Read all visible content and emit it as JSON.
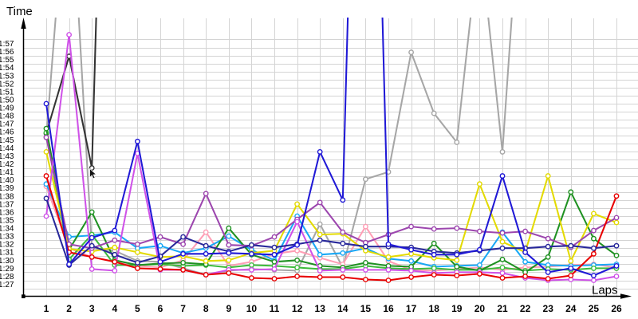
{
  "chart_data": {
    "type": "line",
    "title": "",
    "xlabel": "Laps",
    "ylabel": "Time",
    "x": [
      1,
      2,
      3,
      4,
      5,
      6,
      7,
      8,
      9,
      10,
      11,
      12,
      13,
      14,
      15,
      16,
      17,
      18,
      19,
      20,
      21,
      22,
      23,
      24,
      25,
      26
    ],
    "y_unit": "lap time in seconds (shown as m:ss)",
    "y_tick_labels": [
      "1:27",
      "1:28",
      "1:29",
      "1:30",
      "1:31",
      "1:32",
      "1:33",
      "1:34",
      "1:35",
      "1:36",
      "1:37",
      "1:38",
      "1:39",
      "1:40",
      "1:41",
      "1:42",
      "1:43",
      "1:44",
      "1:45",
      "1:46",
      "1:47",
      "1:48",
      "1:49",
      "1:50",
      "1:51",
      "1:52",
      "1:53",
      "1:54",
      "1:55",
      "1:56",
      "1:57"
    ],
    "ylim_seconds": [
      87,
      117
    ],
    "grid": true,
    "legend": "none",
    "series": [
      {
        "name": "gray",
        "color": "#a6a6a6",
        "values": [
          104.8,
          141.0,
          91.0,
          90.7,
          89.4,
          89.3,
          88.5,
          87.7,
          88.2,
          88.4,
          88.3,
          88.2,
          94.0,
          88.6,
          99.6,
          100.5,
          115.4,
          107.8,
          104.2,
          130.0,
          103.0,
          144.0,
          null,
          null,
          null,
          null
        ]
      },
      {
        "name": "black",
        "color": "#333333",
        "values": [
          105.3,
          114.9,
          101.0,
          200.0,
          null,
          null,
          null,
          null,
          null,
          null,
          null,
          null,
          null,
          null,
          null,
          null,
          null,
          null,
          null,
          null,
          null,
          null,
          null,
          null,
          null,
          null
        ]
      },
      {
        "name": "pink",
        "color": "#ff9eb5",
        "values": [
          98.7,
          91.0,
          89.9,
          89.3,
          88.8,
          88.6,
          89.5,
          93.0,
          88.8,
          89.3,
          90.3,
          90.7,
          89.8,
          89.0,
          93.7,
          89.4,
          88.3,
          88.2,
          88.4,
          88.6,
          88.3,
          88.6,
          88.7,
          88.9,
          89.0,
          88.6
        ]
      },
      {
        "name": "cyan",
        "color": "#19a8f5",
        "values": [
          99.0,
          92.4,
          92.6,
          93.0,
          91.0,
          91.3,
          90.4,
          91.0,
          92.5,
          90.8,
          89.5,
          95.0,
          90.2,
          90.4,
          91.0,
          89.7,
          89.4,
          88.7,
          88.8,
          88.9,
          93.0,
          89.3,
          88.9,
          88.8,
          88.9,
          89.0
        ]
      },
      {
        "name": "lime",
        "color": "#3dbb3d",
        "values": [
          105.4,
          89.6,
          92.7,
          88.9,
          88.9,
          89.0,
          88.8,
          88.9,
          88.6,
          88.9,
          88.8,
          88.6,
          88.4,
          88.4,
          88.8,
          88.5,
          88.4,
          88.5,
          88.3,
          88.3,
          88.6,
          88.2,
          88.4,
          88.3,
          88.5,
          88.5
        ]
      },
      {
        "name": "green",
        "color": "#1f9122",
        "values": [
          105.9,
          90.8,
          95.5,
          89.5,
          88.9,
          89.1,
          89.2,
          89.0,
          93.5,
          90.2,
          89.3,
          89.5,
          88.8,
          88.6,
          89.2,
          88.8,
          88.7,
          91.6,
          88.7,
          88.2,
          89.6,
          88.0,
          89.9,
          98.0,
          92.2,
          90.1
        ]
      },
      {
        "name": "yellow",
        "color": "#e3da00",
        "values": [
          103.0,
          90.9,
          90.6,
          91.1,
          90.5,
          89.9,
          90.0,
          89.4,
          89.5,
          90.4,
          90.7,
          96.5,
          92.7,
          92.8,
          90.7,
          89.9,
          90.3,
          89.8,
          89.5,
          99.0,
          91.8,
          90.5,
          100.0,
          89.4,
          95.3,
          94.2
        ]
      },
      {
        "name": "purple",
        "color": "#9c46ae",
        "values": [
          104.8,
          91.5,
          91.0,
          92.0,
          91.5,
          92.4,
          91.5,
          97.8,
          91.4,
          91.3,
          92.4,
          94.6,
          96.7,
          93.0,
          91.7,
          92.7,
          93.7,
          93.4,
          93.5,
          93.1,
          92.9,
          93.1,
          92.2,
          91.1,
          93.2,
          94.8
        ]
      },
      {
        "name": "magenta",
        "color": "#cf52e8",
        "values": [
          95.0,
          117.6,
          88.4,
          88.2,
          102.8,
          88.3,
          88.3,
          87.7,
          88.3,
          88.3,
          88.4,
          94.3,
          88.2,
          88.3,
          88.3,
          88.3,
          88.2,
          87.9,
          88.0,
          88.0,
          87.9,
          87.3,
          87.0,
          87.1,
          87.0,
          87.5
        ]
      },
      {
        "name": "red",
        "color": "#e80000",
        "values": [
          100.0,
          90.5,
          89.9,
          89.3,
          88.5,
          88.4,
          88.3,
          87.7,
          87.9,
          87.3,
          87.2,
          87.5,
          87.4,
          87.4,
          87.1,
          87.0,
          87.4,
          87.7,
          87.6,
          87.8,
          87.3,
          87.5,
          87.2,
          87.6,
          90.3,
          97.5
        ]
      },
      {
        "name": "navy",
        "color": "#28289a",
        "values": [
          97.2,
          88.9,
          91.3,
          90.2,
          89.2,
          90.0,
          92.4,
          91.3,
          90.6,
          91.4,
          91.1,
          91.5,
          92.0,
          91.6,
          91.2,
          91.2,
          91.1,
          90.6,
          90.4,
          90.7,
          91.0,
          91.0,
          91.2,
          91.3,
          91.0,
          91.3
        ]
      },
      {
        "name": "blue",
        "color": "#2019d6",
        "values": [
          109.0,
          89.0,
          92.3,
          93.2,
          104.3,
          89.3,
          90.3,
          90.3,
          90.4,
          90.3,
          90.2,
          91.4,
          103.0,
          97.0,
          200.0,
          91.5,
          90.8,
          90.2,
          90.2,
          90.8,
          100.0,
          90.5,
          88.0,
          88.5,
          87.6,
          88.8
        ]
      }
    ]
  }
}
